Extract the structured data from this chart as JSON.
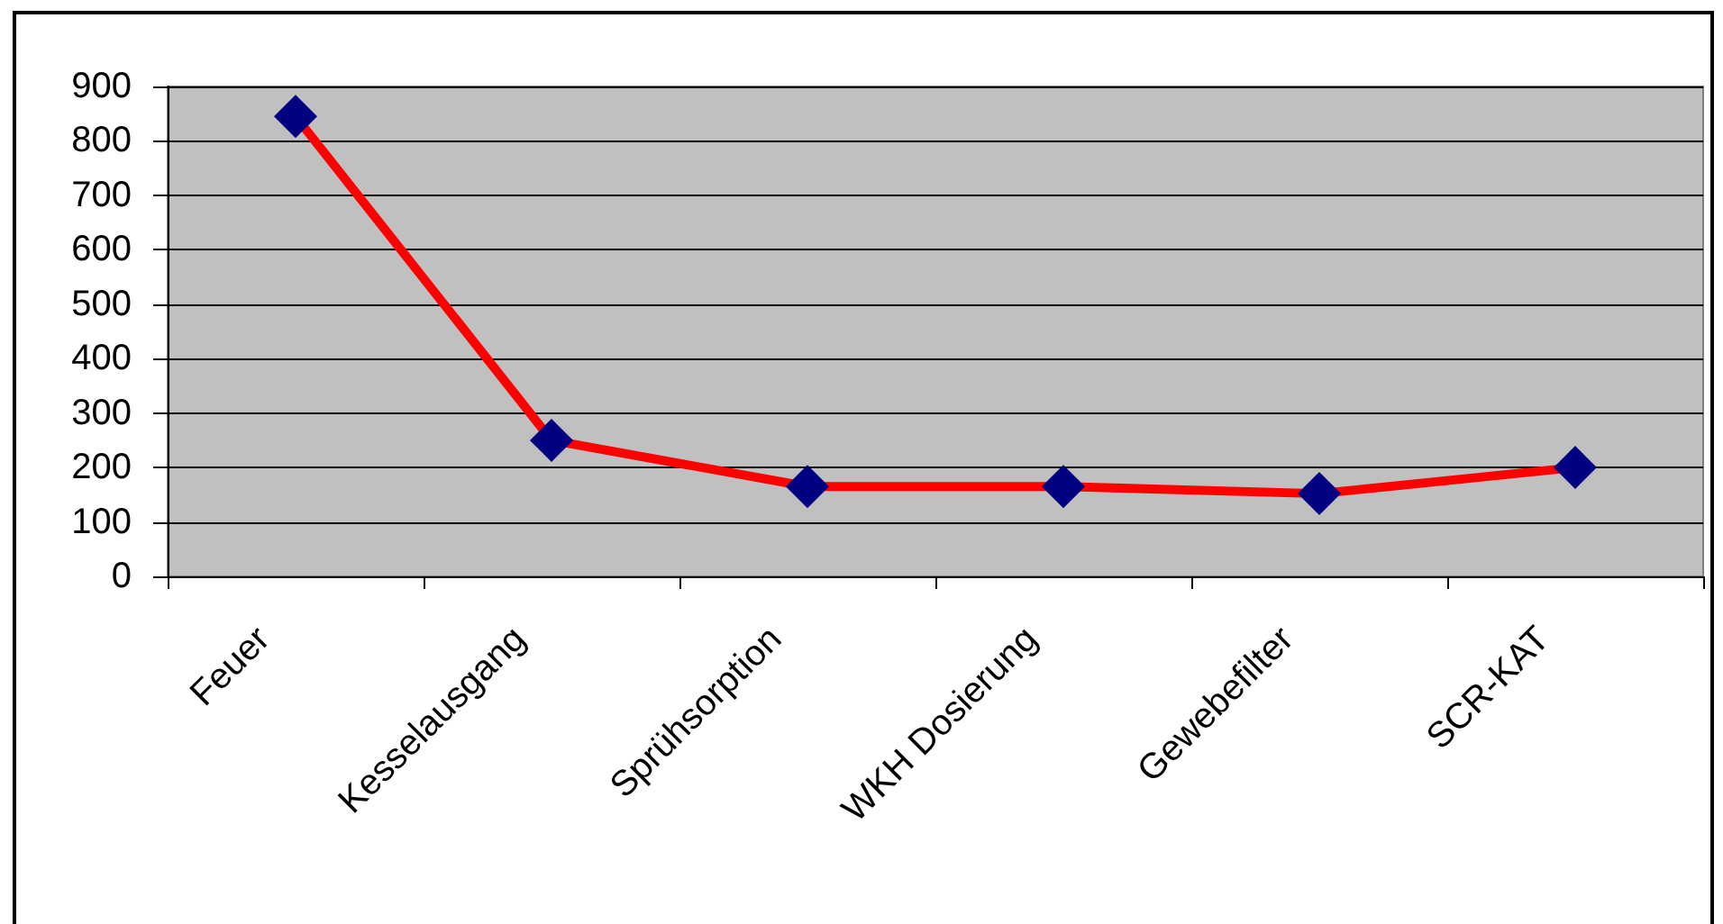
{
  "chart_data": {
    "type": "line",
    "categories": [
      "Feuer",
      "Kesselausgang",
      "Sprühsorption",
      "WKH Dosierung",
      "Gewebefilter",
      "SCR-KAT"
    ],
    "series": [
      {
        "color": "#ff0000",
        "colors": [
          "#000080",
          "#000080",
          "#000080",
          "#000080",
          "#000080",
          "#000080"
        ],
        "values": [
          845,
          250,
          165,
          165,
          152,
          200
        ]
      }
    ],
    "ylim": [
      0,
      900
    ],
    "yticks": [
      0,
      100,
      200,
      300,
      400,
      500,
      600,
      700,
      800,
      900
    ],
    "grid": "y",
    "marker": "diamond",
    "line_style": "solid"
  }
}
